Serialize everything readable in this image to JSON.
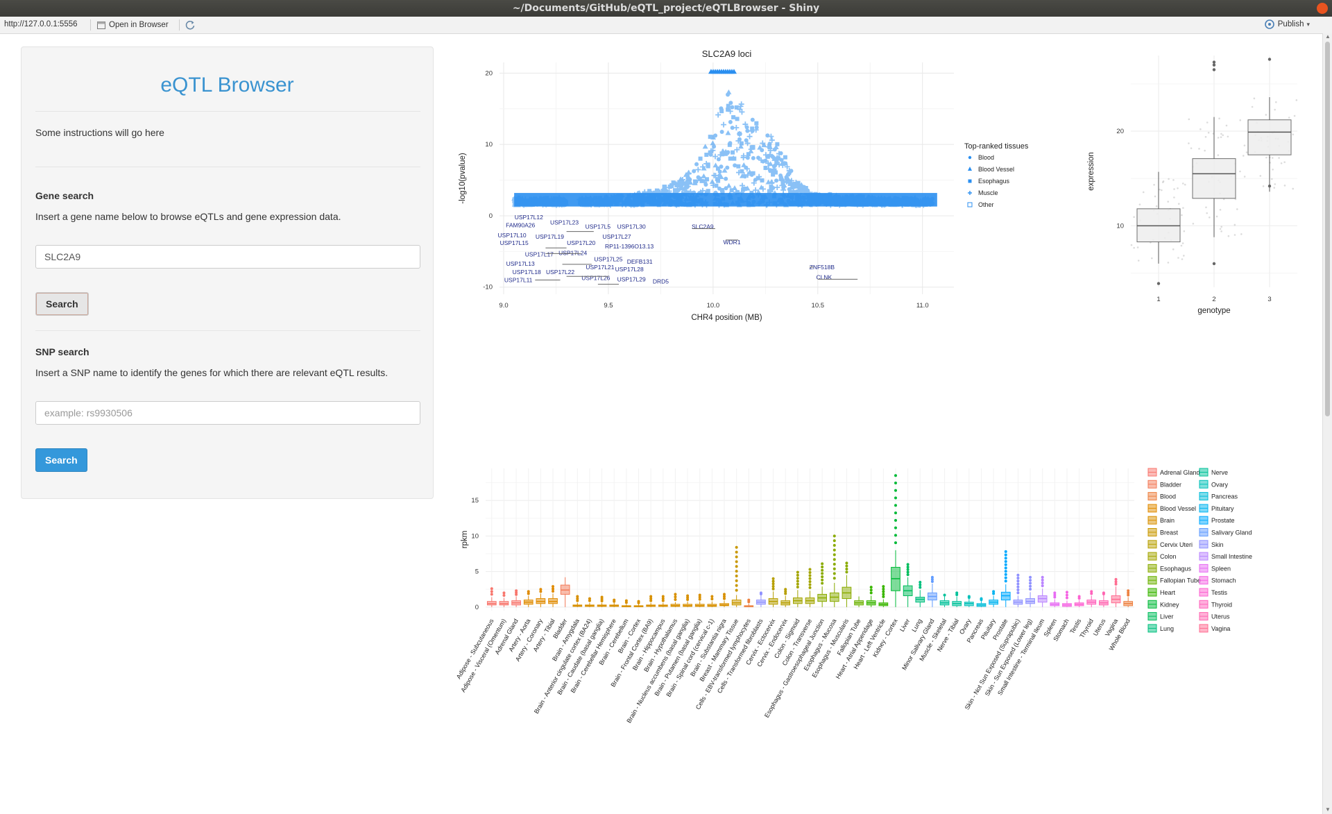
{
  "window": {
    "title": "~/Documents/GitHub/eQTL_project/eQTLBrowser - Shiny"
  },
  "toolbar": {
    "url": "http://127.0.0.1:5556",
    "open_browser": "Open in Browser",
    "publish": "Publish"
  },
  "sidebar": {
    "app_title": "eQTL Browser",
    "instructions": "Some instructions will go here",
    "gene_search": {
      "heading": "Gene search",
      "description": "Insert a gene name below to browse eQTLs and gene expression data.",
      "value": "SLC2A9",
      "button": "Search"
    },
    "snp_search": {
      "heading": "SNP search",
      "description": "Insert a SNP name to identify the genes for which there are relevant eQTL results.",
      "placeholder": "example: rs9930506",
      "button": "Search"
    }
  },
  "colors": {
    "accent": "#3498db",
    "title_blue": "#3a93d0",
    "point_blue": "#2b8ff0",
    "gene_label": "#1f2a8a"
  },
  "chart_data": [
    {
      "type": "scatter",
      "title": "SLC2A9 loci",
      "xlabel": "CHR4 position (MB)",
      "ylabel": "-log10(pvalue)",
      "xlim": [
        8.98,
        11.15
      ],
      "ylim": [
        -11,
        21.5
      ],
      "xticks": [
        9.0,
        9.5,
        10.0,
        10.5,
        11.0
      ],
      "xtick_labels": [
        "9.0",
        "9.5",
        "10.0",
        "10.5",
        "11.0"
      ],
      "yticks": [
        20,
        10,
        0,
        -10
      ],
      "legend": {
        "title": "Top-ranked tissues",
        "placement": "right",
        "entries": [
          {
            "label": "Blood",
            "icon": "dot"
          },
          {
            "label": "Blood Vessel",
            "icon": "triangle"
          },
          {
            "label": "Esophagus",
            "icon": "square"
          },
          {
            "label": "Muscle",
            "icon": "plus"
          },
          {
            "label": "Other",
            "icon": "boxed-x"
          }
        ]
      },
      "profile": [
        [
          9.05,
          2.5
        ],
        [
          9.2,
          2.5
        ],
        [
          9.45,
          2.5
        ],
        [
          9.6,
          3
        ],
        [
          9.7,
          3.5
        ],
        [
          9.8,
          4.5
        ],
        [
          9.88,
          6
        ],
        [
          9.95,
          9
        ],
        [
          10.0,
          12
        ],
        [
          10.05,
          18
        ],
        [
          10.1,
          17
        ],
        [
          10.18,
          14
        ],
        [
          10.3,
          11
        ],
        [
          10.4,
          5
        ],
        [
          10.5,
          3
        ],
        [
          10.6,
          3
        ],
        [
          10.8,
          2.5
        ],
        [
          11.05,
          2.5
        ]
      ],
      "genes": [
        {
          "name": "USP17L12",
          "x": 9.12,
          "y": -0.5
        },
        {
          "name": "FAM90A26",
          "x": 9.08,
          "y": -1.6
        },
        {
          "name": "USP17L23",
          "x": 9.29,
          "y": -1.2
        },
        {
          "name": "USP17L5",
          "x": 9.45,
          "y": -1.8
        },
        {
          "name": "USP17L30",
          "x": 9.61,
          "y": -1.8
        },
        {
          "name": "SLC2A9",
          "x": 9.95,
          "y": -1.8
        },
        {
          "name": "USP17L10",
          "x": 9.04,
          "y": -3.0
        },
        {
          "name": "USP17L19",
          "x": 9.22,
          "y": -3.2
        },
        {
          "name": "USP17L27",
          "x": 9.54,
          "y": -3.2
        },
        {
          "name": "USP17L15",
          "x": 9.05,
          "y": -4.1
        },
        {
          "name": "USP17L20",
          "x": 9.37,
          "y": -4.1
        },
        {
          "name": "RP11-1396O13.13",
          "x": 9.6,
          "y": -4.6
        },
        {
          "name": "WDR1",
          "x": 10.09,
          "y": -4.0
        },
        {
          "name": "USP17L17",
          "x": 9.17,
          "y": -5.7
        },
        {
          "name": "USP17L24",
          "x": 9.33,
          "y": -5.5
        },
        {
          "name": "USP17L25",
          "x": 9.5,
          "y": -6.4
        },
        {
          "name": "DEFB131",
          "x": 9.65,
          "y": -6.7
        },
        {
          "name": "USP17L13",
          "x": 9.08,
          "y": -7.0
        },
        {
          "name": "USP17L21",
          "x": 9.46,
          "y": -7.5
        },
        {
          "name": "USP17L28",
          "x": 9.6,
          "y": -7.8
        },
        {
          "name": "ZNF518B",
          "x": 10.52,
          "y": -7.5
        },
        {
          "name": "USP17L18",
          "x": 9.11,
          "y": -8.2
        },
        {
          "name": "USP17L22",
          "x": 9.27,
          "y": -8.2
        },
        {
          "name": "CLNK",
          "x": 10.53,
          "y": -8.9
        },
        {
          "name": "USP17L11",
          "x": 9.07,
          "y": -9.3
        },
        {
          "name": "USP17L26",
          "x": 9.44,
          "y": -9.0
        },
        {
          "name": "USP17L29",
          "x": 9.61,
          "y": -9.2
        },
        {
          "name": "DRD5",
          "x": 9.75,
          "y": -9.5
        }
      ]
    },
    {
      "type": "box",
      "xlabel": "genotype",
      "ylabel": "expression",
      "categories": [
        "1",
        "2",
        "3"
      ],
      "ylim": [
        3.5,
        28
      ],
      "yticks": [
        10,
        20
      ],
      "boxes": [
        {
          "min": 6.0,
          "q1": 8.3,
          "median": 10.0,
          "q3": 11.8,
          "max": 15.7,
          "outliers": [
            3.9
          ]
        },
        {
          "min": 8.8,
          "q1": 12.9,
          "median": 15.5,
          "q3": 17.1,
          "max": 21.5,
          "outliers": [
            6.0,
            26.5,
            27.0,
            27.3
          ]
        },
        {
          "min": 13.6,
          "q1": 17.5,
          "median": 19.9,
          "q3": 21.2,
          "max": 23.6,
          "outliers": [
            14.2,
            27.6
          ]
        }
      ]
    },
    {
      "type": "box",
      "xlabel": "",
      "ylabel": "rpkm",
      "ylim": [
        -0.5,
        19.5
      ],
      "yticks": [
        0,
        5,
        10,
        15
      ],
      "categories": [
        "Adipose - Subcutaneous",
        "Adipose - Visceral (Omentum)",
        "Adrenal Gland",
        "Artery - Aorta",
        "Artery - Coronary",
        "Artery - Tibial",
        "Bladder",
        "Brain - Amygdala",
        "Brain - Anterior cingulate cortex (BA24)",
        "Brain - Caudate (basal ganglia)",
        "Brain - Cerebellar Hemisphere",
        "Brain - Cerebellum",
        "Brain - Cortex",
        "Brain - Frontal Cortex (BA9)",
        "Brain - Hippocampus",
        "Brain - Hypothalamus",
        "Brain - Nucleus accumbens (basal ganglia)",
        "Brain - Putamen (basal ganglia)",
        "Brain - Spinal cord (cervical c-1)",
        "Brain - Substantia nigra",
        "Breast - Mammary Tissue",
        "Cells - EBV-transformed lymphocytes",
        "Cells - Transformed fibroblasts",
        "Cervix - Ectocervix",
        "Cervix - Endocervix",
        "Colon - Sigmoid",
        "Colon - Transverse",
        "Esophagus - Gastroesophageal Junction",
        "Esophagus - Mucosa",
        "Esophagus - Muscularis",
        "Fallopian Tube",
        "Heart - Atrial Appendage",
        "Heart - Left Ventricle",
        "Kidney - Cortex",
        "Liver",
        "Lung",
        "Minor Salivary Gland",
        "Muscle - Skeletal",
        "Nerve - Tibial",
        "Ovary",
        "Pancreas",
        "Pituitary",
        "Prostate",
        "Skin - Not Sun Exposed (Suprapubic)",
        "Skin - Sun Exposed (Lower leg)",
        "Small Intestine - Terminal Ileum",
        "Spleen",
        "Stomach",
        "Testis",
        "Thyroid",
        "Uterus",
        "Vagina",
        "Whole Blood"
      ],
      "tissue_groups": [
        "Adipose",
        "Adipose",
        "Adrenal Gland",
        "Blood Vessel",
        "Blood Vessel",
        "Blood Vessel",
        "Bladder",
        "Brain",
        "Brain",
        "Brain",
        "Brain",
        "Brain",
        "Brain",
        "Brain",
        "Brain",
        "Brain",
        "Brain",
        "Brain",
        "Brain",
        "Brain",
        "Breast",
        "Blood",
        "Skin",
        "Cervix Uteri",
        "Cervix Uteri",
        "Colon",
        "Colon",
        "Esophagus",
        "Esophagus",
        "Esophagus",
        "Fallopian Tube",
        "Heart",
        "Heart",
        "Kidney",
        "Liver",
        "Lung",
        "Salivary Gland",
        "Muscle",
        "Nerve",
        "Ovary",
        "Pancreas",
        "Pituitary",
        "Prostate",
        "Skin",
        "Skin",
        "Small Intestine",
        "Spleen",
        "Stomach",
        "Testis",
        "Thyroid",
        "Uterus",
        "Vagina",
        "Blood"
      ],
      "medians": [
        0.5,
        0.5,
        0.6,
        0.7,
        0.8,
        0.8,
        2.4,
        0.2,
        0.2,
        0.2,
        0.2,
        0.1,
        0.1,
        0.2,
        0.2,
        0.2,
        0.2,
        0.2,
        0.2,
        0.3,
        0.6,
        0.1,
        0.7,
        0.8,
        0.6,
        0.9,
        0.9,
        1.3,
        1.4,
        2.0,
        0.6,
        0.6,
        0.4,
        4.0,
        2.3,
        1.1,
        1.5,
        0.6,
        0.5,
        0.5,
        0.3,
        0.7,
        1.6,
        0.7,
        0.8,
        1.2,
        0.4,
        0.3,
        0.4,
        0.7,
        0.6,
        1.1,
        0.5
      ],
      "q1s": [
        0.3,
        0.3,
        0.3,
        0.4,
        0.5,
        0.5,
        1.8,
        0.1,
        0.1,
        0.1,
        0.1,
        0.05,
        0.05,
        0.1,
        0.1,
        0.1,
        0.1,
        0.1,
        0.1,
        0.2,
        0.3,
        0.05,
        0.4,
        0.4,
        0.3,
        0.5,
        0.5,
        0.8,
        0.8,
        1.2,
        0.3,
        0.3,
        0.2,
        2.3,
        1.6,
        0.7,
        1.0,
        0.3,
        0.2,
        0.2,
        0.1,
        0.4,
        1.0,
        0.4,
        0.5,
        0.7,
        0.2,
        0.1,
        0.2,
        0.4,
        0.3,
        0.6,
        0.2
      ],
      "q3s": [
        0.8,
        0.8,
        0.9,
        1.0,
        1.2,
        1.2,
        3.1,
        0.3,
        0.3,
        0.3,
        0.3,
        0.2,
        0.2,
        0.3,
        0.3,
        0.4,
        0.4,
        0.4,
        0.4,
        0.5,
        1.0,
        0.2,
        1.0,
        1.2,
        0.9,
        1.3,
        1.3,
        1.8,
        2.0,
        2.8,
        0.9,
        0.9,
        0.6,
        5.6,
        3.0,
        1.4,
        2.0,
        0.9,
        0.8,
        0.7,
        0.5,
        1.0,
        2.1,
        1.0,
        1.2,
        1.6,
        0.6,
        0.5,
        0.6,
        1.0,
        0.9,
        1.6,
        0.8
      ],
      "whisker_hi": [
        1.4,
        1.3,
        1.5,
        1.6,
        1.9,
        1.9,
        4.2,
        0.6,
        0.6,
        0.6,
        0.6,
        0.4,
        0.4,
        0.6,
        0.6,
        0.7,
        0.8,
        0.8,
        0.8,
        0.9,
        1.7,
        0.5,
        1.7,
        2.2,
        1.6,
        2.4,
        2.3,
        2.9,
        3.4,
        4.5,
        1.5,
        1.6,
        1.1,
        8.0,
        4.2,
        2.4,
        3.3,
        1.5,
        1.5,
        1.2,
        0.9,
        1.6,
        3.2,
        1.6,
        2.1,
        2.6,
        1.1,
        0.9,
        1.0,
        1.6,
        1.7,
        2.9,
        1.4
      ],
      "outliers_max": [
        2.6,
        2.0,
        2.3,
        2.2,
        2.5,
        2.9,
        4.2,
        1.5,
        1.2,
        1.4,
        1.0,
        0.9,
        0.8,
        1.5,
        1.5,
        1.8,
        1.6,
        1.7,
        1.5,
        1.8,
        8.4,
        1.0,
        2.0,
        4.0,
        2.5,
        4.9,
        5.3,
        6.1,
        10.0,
        6.2,
        1.5,
        2.8,
        2.9,
        18.5,
        6.0,
        3.5,
        4.2,
        1.7,
        2.0,
        1.5,
        1.2,
        2.2,
        7.8,
        4.5,
        4.2,
        4.2,
        2.0,
        2.1,
        1.5,
        2.2,
        2.0,
        3.9,
        2.3
      ],
      "legend_entries": [
        "Adrenal Gland",
        "Bladder",
        "Blood",
        "Blood Vessel",
        "Brain",
        "Breast",
        "Cervix Uteri",
        "Colon",
        "Esophagus",
        "Fallopian Tube",
        "Heart",
        "Kidney",
        "Liver",
        "Lung",
        "Nerve",
        "Ovary",
        "Pancreas",
        "Pituitary",
        "Prostate",
        "Salivary Gland",
        "Skin",
        "Small Intestine",
        "Spleen",
        "Stomach",
        "Testis",
        "Thyroid",
        "Uterus",
        "Vagina"
      ],
      "legend_colors": [
        "#F8766D",
        "#F37B59",
        "#ED8141",
        "#E08B00",
        "#D89000",
        "#C99800",
        "#B79F00",
        "#A3A500",
        "#8AAB00",
        "#6BB100",
        "#39B600",
        "#00BA38",
        "#00BD5C",
        "#00BF7D",
        "#00C19A",
        "#00C0B8",
        "#00BCD8",
        "#00B4F0",
        "#00A9FF",
        "#619CFF",
        "#8F91FF",
        "#B983FF",
        "#E76BF3",
        "#F564E3",
        "#FD61D1",
        "#FF62BC",
        "#FF64B0",
        "#FF6C91"
      ]
    }
  ]
}
